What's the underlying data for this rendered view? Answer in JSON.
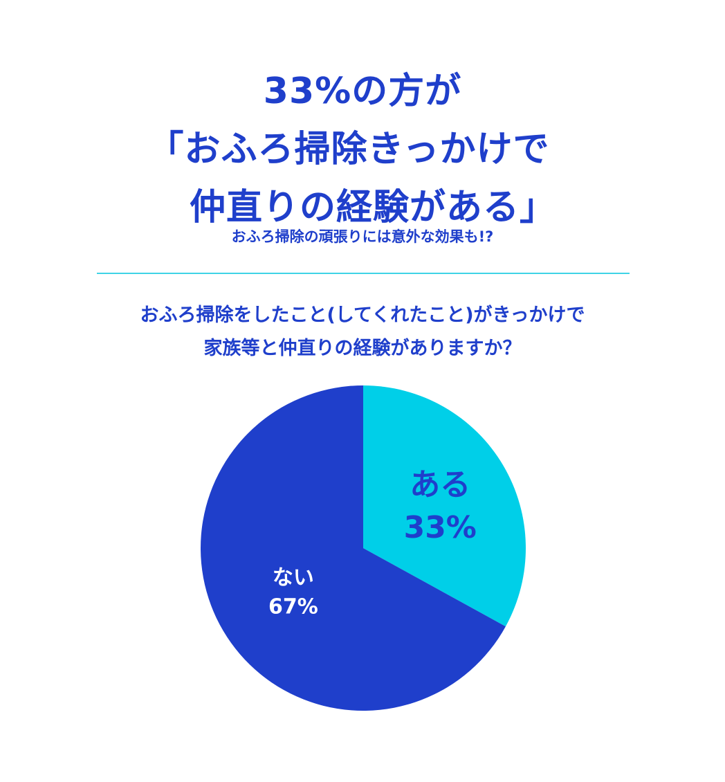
{
  "header": {
    "title_lines": [
      "33%の方が",
      "「おふろ掃除きっかけで",
      "仲直りの経験がある」"
    ],
    "subtitle": "おふろ掃除の頑張りには意外な効果も!?"
  },
  "chart_data": {
    "type": "pie",
    "title": "おふろ掃除をしたこと(してくれたこと)がきっかけで家族等と仲直りの経験がありますか？",
    "title_lines": [
      "おふろ掃除をしたこと(してくれたこと)がきっかけで",
      "家族等と仲直りの経験がありますか？"
    ],
    "slices": [
      {
        "label": "ある",
        "value": 33,
        "display": "33%",
        "color": "#00cfe8",
        "text_color": "#1f3fcb"
      },
      {
        "label": "ない",
        "value": 67,
        "display": "67%",
        "color": "#1f3fcb",
        "text_color": "#ffffff"
      }
    ],
    "start": "top",
    "direction": "clockwise"
  },
  "colors": {
    "primary": "#1f3fcb",
    "accent": "#00cfe8"
  }
}
